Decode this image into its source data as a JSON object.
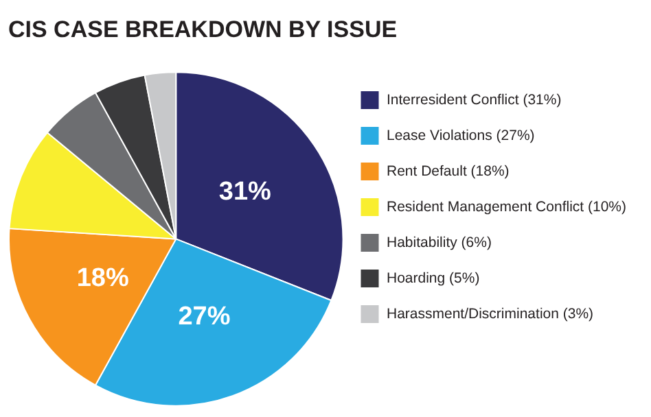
{
  "chart_data": {
    "type": "pie",
    "title": "CIS CASE BREAKDOWN BY ISSUE",
    "categories": [
      "Interresident Conflict (31%)",
      "Lease Violations (27%)",
      "Rent Default (18%)",
      "Resident Management Conflict (10%)",
      "Habitability (6%)",
      "Hoarding (5%)",
      "Harassment/Discrimination (3%)"
    ],
    "values": [
      31,
      27,
      18,
      10,
      6,
      5,
      3
    ],
    "value_labels": [
      "31%",
      "27%",
      "18%",
      null,
      null,
      null,
      null
    ],
    "colors": [
      "#2b2a6b",
      "#29abe2",
      "#f7941d",
      "#f9ee2f",
      "#6d6e71",
      "#3a3a3c",
      "#c7c8ca"
    ],
    "legend": "right"
  }
}
